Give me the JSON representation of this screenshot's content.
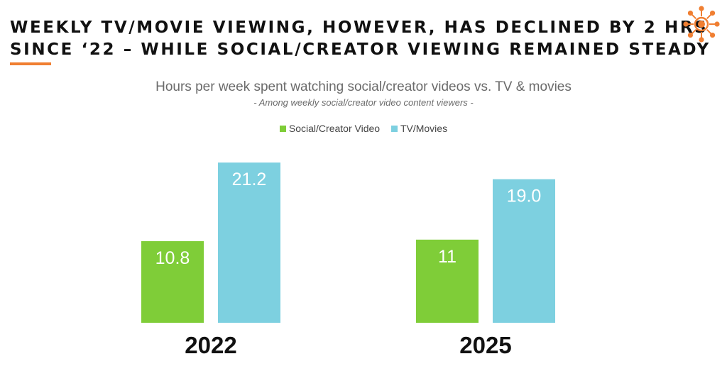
{
  "headline": {
    "line1": "WEEKLY TV/MOVIE VIEWING, HOWEVER, HAS DECLINED BY 2 HRS",
    "line2": "SINCE ‘22 – WHILE SOCIAL/CREATOR VIEWING REMAINED STEADY"
  },
  "logo": {
    "icon": "sun-network-icon",
    "color": "#f07f32"
  },
  "chart_data": {
    "type": "bar",
    "title": "Hours per week spent watching social/creator videos vs. TV & movies",
    "subtitle": "- Among weekly social/creator video content viewers -",
    "categories": [
      "2022",
      "2025"
    ],
    "series": [
      {
        "name": "Social/Creator Video",
        "color": "#7fcd38",
        "values": [
          10.8,
          11
        ],
        "labels": [
          "10.8",
          "11"
        ]
      },
      {
        "name": "TV/Movies",
        "color": "#7dd0e0",
        "values": [
          21.2,
          19.0
        ],
        "labels": [
          "21.2",
          "19.0"
        ]
      }
    ],
    "ylim": [
      0,
      23
    ],
    "grid": false,
    "legend_position": "top-center",
    "xlabel": "",
    "ylabel": ""
  }
}
